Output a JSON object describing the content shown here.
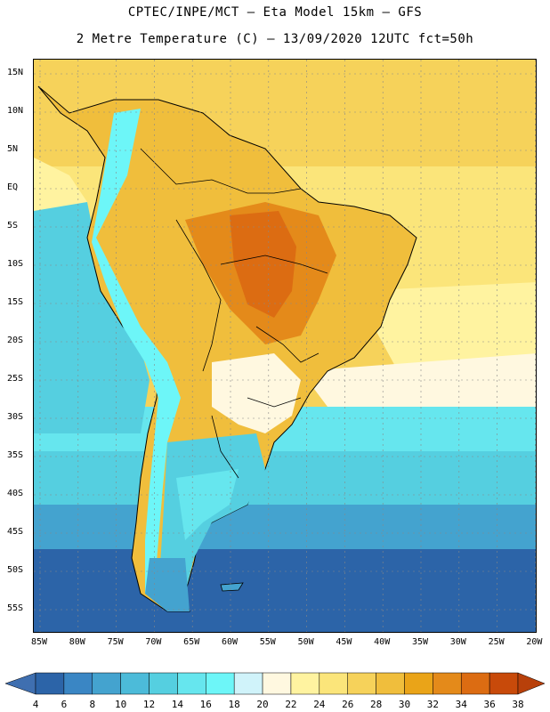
{
  "header": {
    "line1": "CPTEC/INPE/MCT –  Eta Model 15km – GFS",
    "line2": "2 Metre Temperature (C) – 13/09/2020 12UTC fct=50h"
  },
  "map": {
    "variable": "2 Metre Temperature",
    "unit": "C",
    "lat_labels": [
      "15N",
      "10N",
      "5N",
      "EQ",
      "5S",
      "10S",
      "15S",
      "20S",
      "25S",
      "30S",
      "35S",
      "40S",
      "45S",
      "50S",
      "55S"
    ],
    "lon_labels": [
      "85W",
      "80W",
      "75W",
      "70W",
      "65W",
      "60W",
      "55W",
      "50W",
      "45W",
      "40W",
      "35W",
      "30W",
      "25W",
      "20W"
    ]
  },
  "colorbar": {
    "labels": [
      "4",
      "6",
      "8",
      "10",
      "12",
      "14",
      "16",
      "18",
      "20",
      "22",
      "24",
      "26",
      "28",
      "30",
      "32",
      "34",
      "36",
      "38"
    ],
    "colors": [
      "#3f6fb0",
      "#2c64a8",
      "#3a86c4",
      "#44a3cf",
      "#4cbbd9",
      "#55cfe0",
      "#66e6ee",
      "#6df6f8",
      "#d0f3fa",
      "#fff8e0",
      "#fff3a0",
      "#fbe57a",
      "#f6d25a",
      "#f0be3c",
      "#eaa418",
      "#e48a1a",
      "#dc6c12",
      "#c84a0a",
      "#b8400a"
    ]
  }
}
